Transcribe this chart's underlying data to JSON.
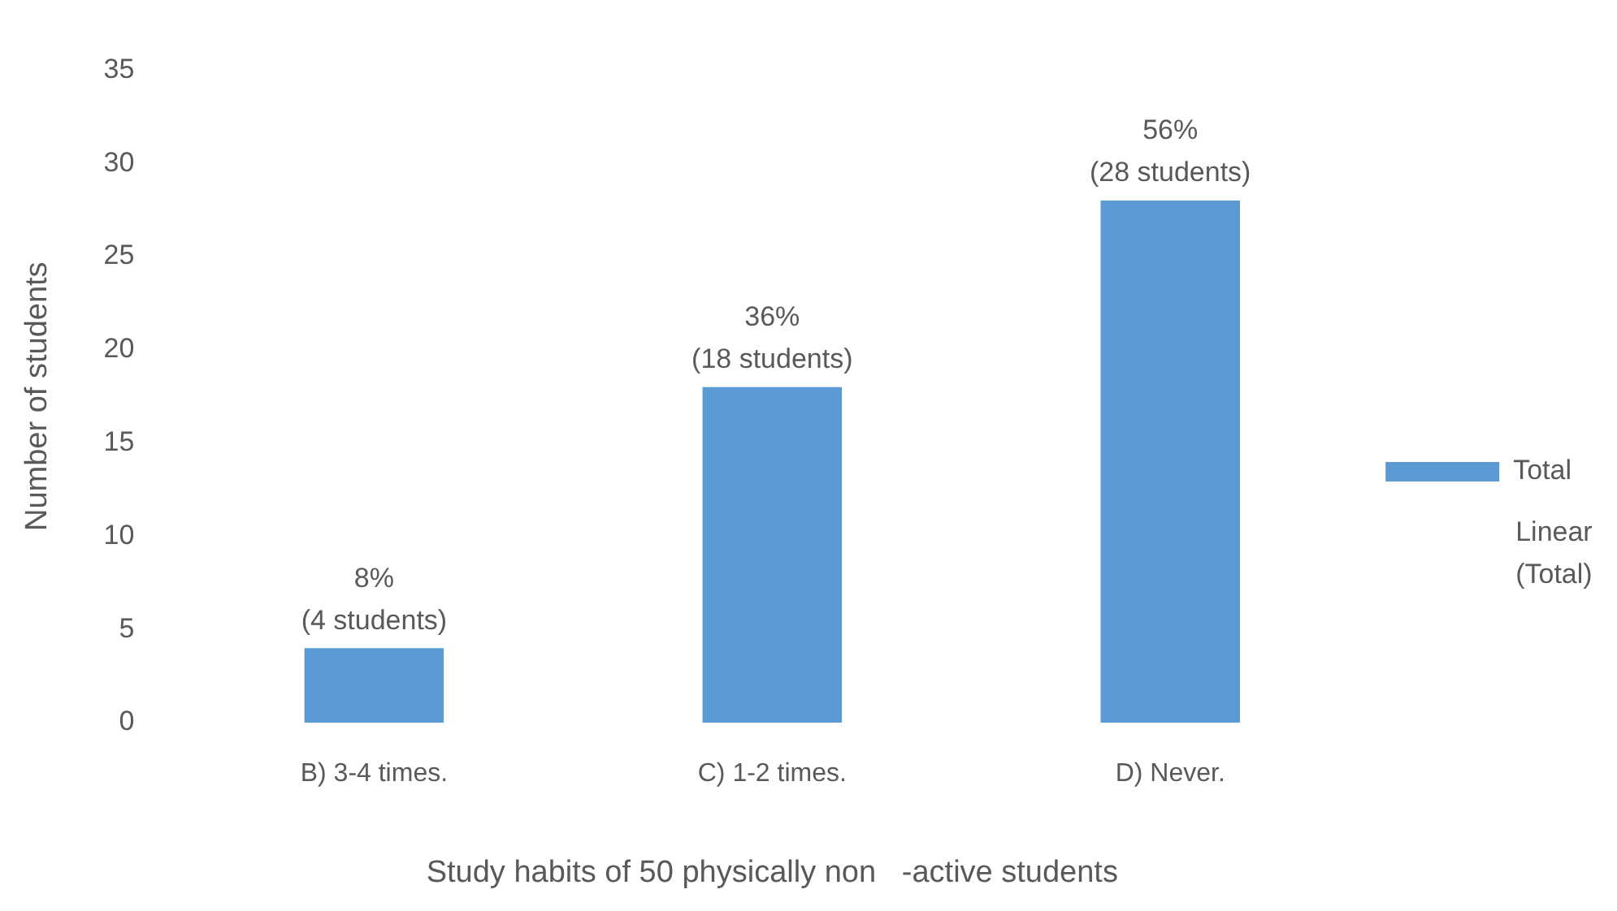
{
  "chart_data": {
    "type": "bar",
    "xlabel": "Study habits of 50 physically non   -active students",
    "ylabel": "Number of students",
    "categories": [
      "B) 3-4 times.",
      "C) 1-2 times.",
      "D) Never."
    ],
    "series": [
      {
        "name": "Total",
        "color": "#5b9bd5",
        "values": [
          4,
          18,
          28
        ],
        "value_labels": [
          "8%\n(4 students)",
          "36%\n(18 students)",
          "56%\n(28 students)"
        ]
      }
    ],
    "ylim": [
      0,
      35
    ],
    "yticks": [
      0,
      5,
      10,
      15,
      20,
      25,
      30,
      35
    ],
    "grid": false,
    "legend": "right",
    "annotations": [
      "Linear\n(Total)"
    ]
  }
}
